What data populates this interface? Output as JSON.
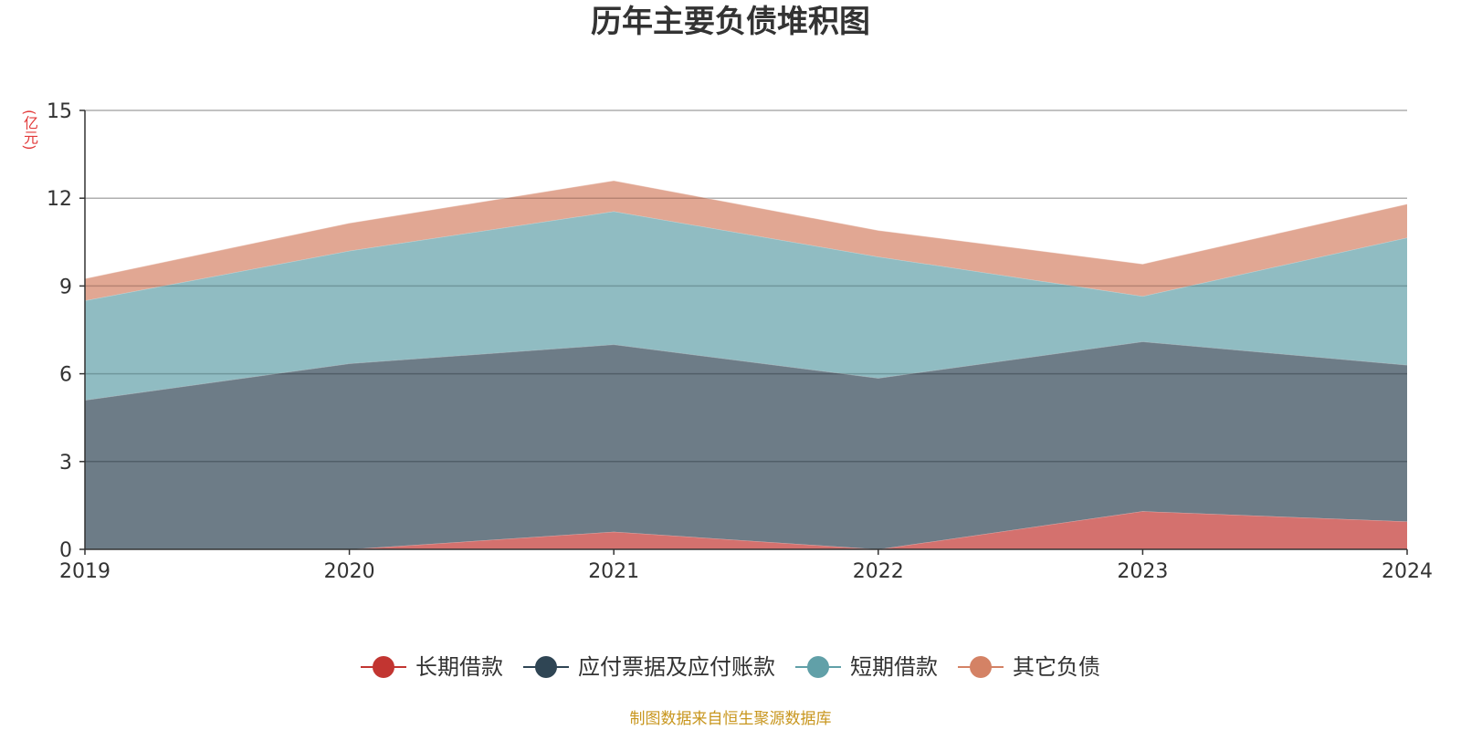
{
  "chart_data": {
    "type": "area",
    "stacked": true,
    "title": "历年主要负债堆积图",
    "unit": "(亿元)",
    "categories": [
      "2019",
      "2020",
      "2021",
      "2022",
      "2023",
      "2024"
    ],
    "ylim": [
      0,
      15
    ],
    "yticks": [
      0,
      3,
      6,
      9,
      12,
      15
    ],
    "grid": true,
    "legend_position": "bottom",
    "series": [
      {
        "name": "长期借款",
        "color": "#c23531",
        "values": [
          0,
          0,
          0.6,
          0,
          1.3,
          0.95
        ]
      },
      {
        "name": "应付票据及应付账款",
        "color": "#2f4554",
        "values": [
          5.1,
          6.35,
          6.4,
          5.85,
          5.8,
          5.35
        ]
      },
      {
        "name": "短期借款",
        "color": "#61a0a8",
        "values": [
          3.4,
          3.85,
          4.55,
          4.15,
          1.55,
          4.35
        ]
      },
      {
        "name": "其它负债",
        "color": "#d48265",
        "values": [
          0.75,
          0.95,
          1.05,
          0.9,
          1.1,
          1.15
        ]
      }
    ],
    "source": "制图数据来自恒生聚源数据库"
  }
}
